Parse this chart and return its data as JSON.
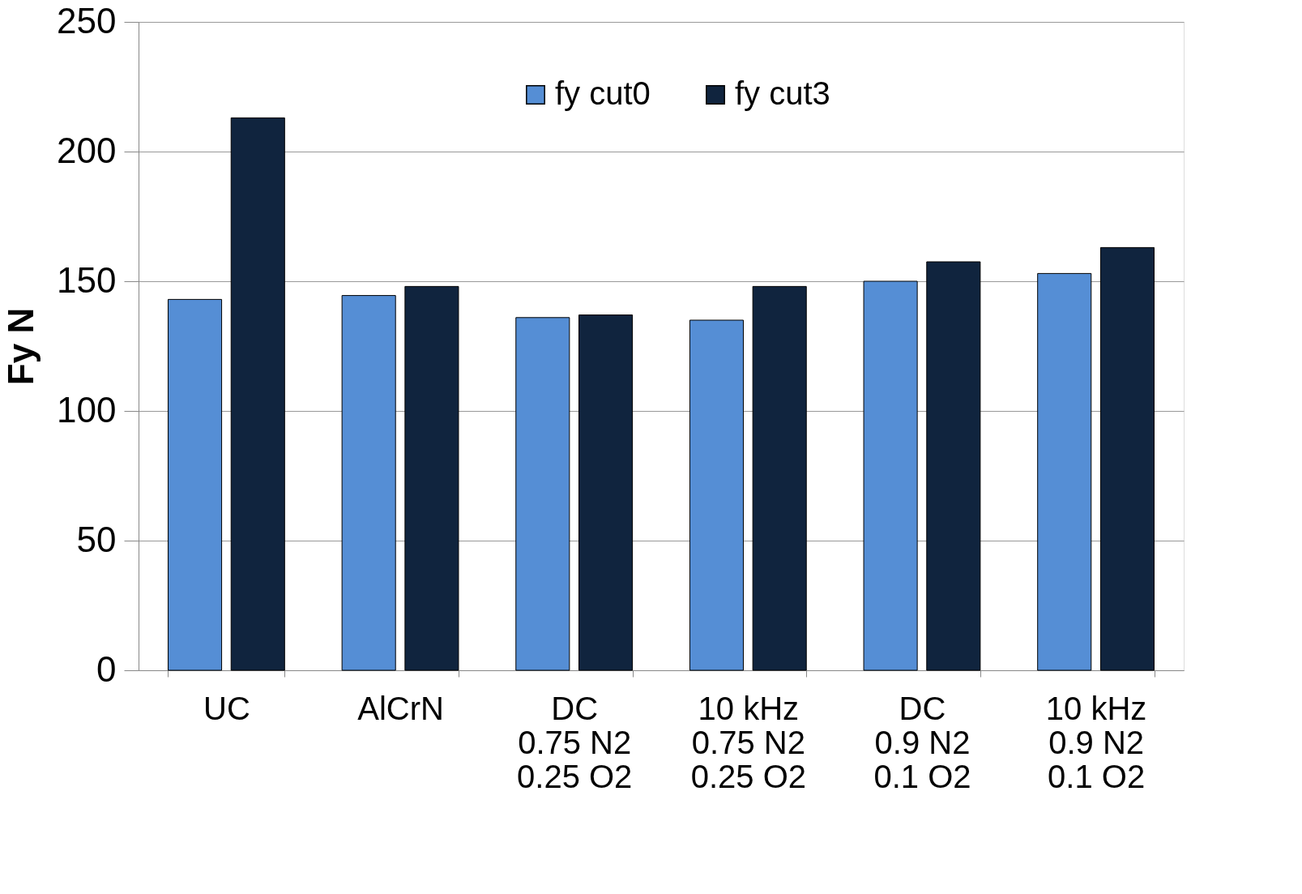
{
  "chart_data": {
    "type": "bar",
    "ylabel": "Fy N",
    "categories": [
      "UC",
      "AlCrN",
      "DC\n0.75 N2\n0.25 O2",
      "10 kHz\n0.75 N2\n0.25 O2",
      "DC\n0.9 N2\n0.1 O2",
      "10 kHz\n0.9 N2\n0.1 O2"
    ],
    "series": [
      {
        "name": "fy cut0",
        "color": "#558ed5",
        "values": [
          143,
          144.5,
          136,
          135,
          150,
          153
        ]
      },
      {
        "name": "fy cut3",
        "color": "#10243e",
        "values": [
          213,
          148,
          137,
          148,
          157.5,
          163
        ]
      }
    ],
    "ylim": [
      0,
      250
    ],
    "yticks": [
      0,
      50,
      100,
      150,
      200,
      250
    ],
    "grid": "y",
    "legend": "top"
  }
}
